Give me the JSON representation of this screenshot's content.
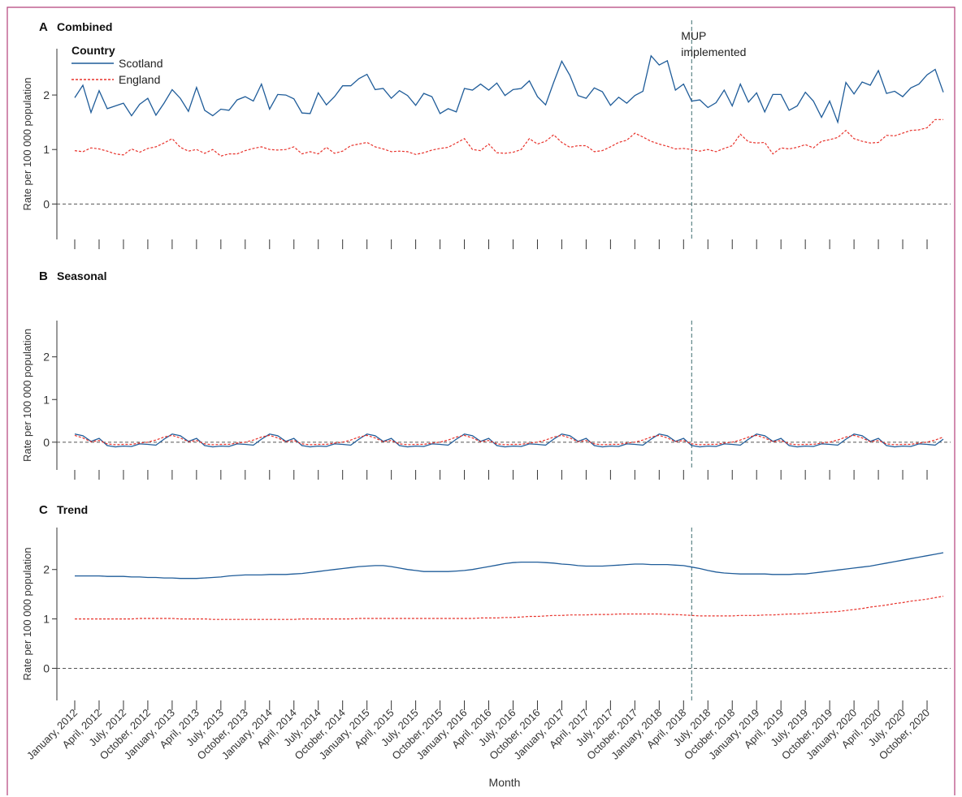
{
  "figure": {
    "frame_color": "#b5417a",
    "xlabel": "Month",
    "annotation": [
      "MUP",
      "implemented"
    ],
    "event_month": "2018-05",
    "x_ticks": [
      "January, 2012",
      "April, 2012",
      "July, 2012",
      "October, 2012",
      "January, 2013",
      "April, 2013",
      "July, 2013",
      "October, 2013",
      "January, 2014",
      "April, 2014",
      "July, 2014",
      "October, 2014",
      "January, 2015",
      "April, 2015",
      "July, 2015",
      "October, 2015",
      "January, 2016",
      "April, 2016",
      "July, 2016",
      "October, 2016",
      "January, 2017",
      "April, 2017",
      "July, 2017",
      "October, 2017",
      "January, 2018",
      "April, 2018",
      "July, 2018",
      "October, 2018",
      "January, 2019",
      "April, 2019",
      "July, 2019",
      "October, 2019",
      "January, 2020",
      "April, 2020",
      "July, 2020",
      "October, 2020"
    ],
    "legend": {
      "title": "Country",
      "placement": "top-left",
      "entries": [
        {
          "name": "Scotland",
          "color": "#1f5c99",
          "style": "solid"
        },
        {
          "name": "England",
          "color": "#e8322b",
          "style": "dashed"
        }
      ]
    }
  },
  "chart_data": [
    {
      "type": "line",
      "panel_letter": "A",
      "title": "Combined",
      "ylabel": "Rate per 100 000 population",
      "ylim": [
        -0.65,
        2.85
      ],
      "yticks": [
        0,
        1,
        2
      ],
      "x_start": "2012-01",
      "x_end": "2020-12",
      "series": [
        {
          "name": "Scotland",
          "color": "#1f5c99",
          "values": [
            1.95,
            2.18,
            1.68,
            2.08,
            1.75,
            1.8,
            1.85,
            1.62,
            1.83,
            1.94,
            1.63,
            1.85,
            2.1,
            1.94,
            1.7,
            2.14,
            1.72,
            1.62,
            1.74,
            1.72,
            1.91,
            1.97,
            1.89,
            2.2,
            1.74,
            2.01,
            2.0,
            1.93,
            1.67,
            1.66,
            2.04,
            1.82,
            1.97,
            2.17,
            2.17,
            2.3,
            2.38,
            2.1,
            2.12,
            1.94,
            2.08,
            1.99,
            1.81,
            2.03,
            1.97,
            1.66,
            1.75,
            1.69,
            2.12,
            2.09,
            2.2,
            2.09,
            2.22,
            1.99,
            2.1,
            2.12,
            2.26,
            1.97,
            1.82,
            2.23,
            2.62,
            2.36,
            1.99,
            1.94,
            2.13,
            2.06,
            1.81,
            1.96,
            1.85,
            1.99,
            2.07,
            2.72,
            2.55,
            2.63,
            2.09,
            2.2,
            1.89,
            1.91,
            1.77,
            1.86,
            2.09,
            1.8,
            2.2,
            1.87,
            2.04,
            1.69,
            2.01,
            2.01,
            1.72,
            1.8,
            2.05,
            1.89,
            1.59,
            1.89,
            1.5,
            2.23,
            2.02,
            2.24,
            2.18,
            2.45,
            2.03,
            2.07,
            1.97,
            2.13,
            2.2,
            2.37,
            2.47,
            2.05
          ]
        },
        {
          "name": "England",
          "color": "#e8322b",
          "values": [
            0.98,
            0.96,
            1.03,
            1.01,
            0.97,
            0.92,
            0.9,
            1.01,
            0.95,
            1.02,
            1.05,
            1.12,
            1.2,
            1.04,
            0.97,
            1.0,
            0.93,
            1.0,
            0.88,
            0.92,
            0.92,
            0.98,
            1.02,
            1.05,
            1.0,
            0.99,
            1.0,
            1.05,
            0.92,
            0.96,
            0.92,
            1.04,
            0.93,
            0.97,
            1.07,
            1.1,
            1.13,
            1.05,
            1.01,
            0.96,
            0.97,
            0.96,
            0.91,
            0.94,
            0.99,
            1.02,
            1.04,
            1.12,
            1.2,
            1.0,
            0.98,
            1.1,
            0.94,
            0.93,
            0.95,
            1.0,
            1.2,
            1.1,
            1.15,
            1.27,
            1.13,
            1.04,
            1.07,
            1.07,
            0.96,
            0.98,
            1.05,
            1.13,
            1.17,
            1.3,
            1.23,
            1.15,
            1.1,
            1.06,
            1.01,
            1.02,
            1.0,
            0.97,
            1.0,
            0.96,
            1.02,
            1.07,
            1.28,
            1.14,
            1.12,
            1.13,
            0.92,
            1.03,
            1.01,
            1.04,
            1.09,
            1.03,
            1.15,
            1.18,
            1.22,
            1.35,
            1.2,
            1.15,
            1.12,
            1.13,
            1.26,
            1.25,
            1.3,
            1.35,
            1.36,
            1.4,
            1.55,
            1.55
          ]
        }
      ]
    },
    {
      "type": "line",
      "panel_letter": "B",
      "title": "Seasonal",
      "ylabel": "Rate per 100 000 population",
      "ylim": [
        -0.65,
        2.85
      ],
      "yticks": [
        0,
        1,
        2
      ],
      "x_start": "2012-01",
      "x_end": "2020-12",
      "series": [
        {
          "name": "Scotland",
          "color": "#1f5c99",
          "values": [
            0.19,
            0.15,
            0.02,
            0.09,
            -0.08,
            -0.11,
            -0.09,
            -0.1,
            -0.04,
            -0.05,
            -0.07,
            0.07,
            0.19,
            0.15,
            0.02,
            0.09,
            -0.08,
            -0.11,
            -0.09,
            -0.1,
            -0.04,
            -0.05,
            -0.07,
            0.07,
            0.19,
            0.15,
            0.02,
            0.09,
            -0.08,
            -0.11,
            -0.09,
            -0.1,
            -0.04,
            -0.05,
            -0.07,
            0.07,
            0.19,
            0.15,
            0.02,
            0.09,
            -0.08,
            -0.11,
            -0.09,
            -0.1,
            -0.04,
            -0.05,
            -0.07,
            0.07,
            0.19,
            0.15,
            0.02,
            0.09,
            -0.08,
            -0.11,
            -0.09,
            -0.1,
            -0.04,
            -0.05,
            -0.07,
            0.07,
            0.19,
            0.15,
            0.02,
            0.09,
            -0.08,
            -0.11,
            -0.09,
            -0.1,
            -0.04,
            -0.05,
            -0.07,
            0.07,
            0.19,
            0.15,
            0.02,
            0.09,
            -0.08,
            -0.11,
            -0.09,
            -0.1,
            -0.04,
            -0.05,
            -0.07,
            0.07,
            0.19,
            0.15,
            0.02,
            0.09,
            -0.08,
            -0.11,
            -0.09,
            -0.1,
            -0.04,
            -0.05,
            -0.07,
            0.07,
            0.19,
            0.15,
            0.02,
            0.09,
            -0.08,
            -0.11,
            -0.09,
            -0.1,
            -0.04,
            -0.05,
            -0.07,
            0.07
          ]
        },
        {
          "name": "England",
          "color": "#e8322b",
          "values": [
            0.16,
            0.1,
            0.01,
            0.04,
            -0.04,
            -0.06,
            -0.05,
            -0.05,
            -0.02,
            0.0,
            0.05,
            0.12,
            0.16,
            0.1,
            0.01,
            0.04,
            -0.04,
            -0.06,
            -0.05,
            -0.05,
            -0.02,
            0.0,
            0.05,
            0.12,
            0.16,
            0.1,
            0.01,
            0.04,
            -0.04,
            -0.06,
            -0.05,
            -0.05,
            -0.02,
            0.0,
            0.05,
            0.12,
            0.16,
            0.1,
            0.01,
            0.04,
            -0.04,
            -0.06,
            -0.05,
            -0.05,
            -0.02,
            0.0,
            0.05,
            0.12,
            0.16,
            0.1,
            0.01,
            0.04,
            -0.04,
            -0.06,
            -0.05,
            -0.05,
            -0.02,
            0.0,
            0.05,
            0.12,
            0.16,
            0.1,
            0.01,
            0.04,
            -0.04,
            -0.06,
            -0.05,
            -0.05,
            -0.02,
            0.0,
            0.05,
            0.12,
            0.16,
            0.1,
            0.01,
            0.04,
            -0.04,
            -0.06,
            -0.05,
            -0.05,
            -0.02,
            0.0,
            0.05,
            0.12,
            0.16,
            0.1,
            0.01,
            0.04,
            -0.04,
            -0.06,
            -0.05,
            -0.05,
            -0.02,
            0.0,
            0.05,
            0.12,
            0.16,
            0.1,
            0.01,
            0.04,
            -0.04,
            -0.06,
            -0.05,
            -0.05,
            -0.02,
            0.0,
            0.05,
            0.12
          ]
        }
      ]
    },
    {
      "type": "line",
      "panel_letter": "C",
      "title": "Trend",
      "ylabel": "Rate per 100 000 population",
      "ylim": [
        -0.65,
        2.85
      ],
      "yticks": [
        0,
        1,
        2
      ],
      "x_start": "2012-01",
      "x_end": "2020-12",
      "series": [
        {
          "name": "Scotland",
          "color": "#1f5c99",
          "values": [
            1.87,
            1.87,
            1.87,
            1.87,
            1.86,
            1.86,
            1.86,
            1.85,
            1.85,
            1.84,
            1.84,
            1.83,
            1.83,
            1.82,
            1.82,
            1.82,
            1.83,
            1.84,
            1.85,
            1.87,
            1.88,
            1.89,
            1.89,
            1.89,
            1.9,
            1.9,
            1.9,
            1.91,
            1.92,
            1.94,
            1.96,
            1.98,
            2.0,
            2.02,
            2.04,
            2.06,
            2.07,
            2.08,
            2.08,
            2.06,
            2.03,
            2.0,
            1.98,
            1.96,
            1.96,
            1.96,
            1.96,
            1.97,
            1.98,
            2.0,
            2.03,
            2.06,
            2.09,
            2.12,
            2.14,
            2.15,
            2.15,
            2.15,
            2.14,
            2.13,
            2.11,
            2.1,
            2.08,
            2.07,
            2.07,
            2.07,
            2.08,
            2.09,
            2.1,
            2.11,
            2.11,
            2.1,
            2.1,
            2.1,
            2.09,
            2.08,
            2.05,
            2.02,
            1.98,
            1.95,
            1.93,
            1.92,
            1.91,
            1.91,
            1.91,
            1.91,
            1.9,
            1.9,
            1.9,
            1.91,
            1.91,
            1.93,
            1.95,
            1.97,
            1.99,
            2.01,
            2.03,
            2.05,
            2.07,
            2.1,
            2.13,
            2.16,
            2.19,
            2.22,
            2.25,
            2.28,
            2.31,
            2.34
          ]
        },
        {
          "name": "England",
          "color": "#e8322b",
          "values": [
            1.0,
            1.0,
            1.0,
            1.0,
            1.0,
            1.0,
            1.0,
            1.0,
            1.01,
            1.01,
            1.01,
            1.01,
            1.01,
            1.0,
            1.0,
            1.0,
            1.0,
            0.99,
            0.99,
            0.99,
            0.99,
            0.99,
            0.99,
            0.99,
            0.99,
            0.99,
            0.99,
            0.99,
            1.0,
            1.0,
            1.0,
            1.0,
            1.0,
            1.0,
            1.0,
            1.01,
            1.01,
            1.01,
            1.01,
            1.01,
            1.01,
            1.01,
            1.01,
            1.01,
            1.01,
            1.01,
            1.01,
            1.01,
            1.01,
            1.01,
            1.02,
            1.02,
            1.02,
            1.03,
            1.03,
            1.04,
            1.05,
            1.05,
            1.06,
            1.07,
            1.07,
            1.08,
            1.08,
            1.08,
            1.09,
            1.09,
            1.09,
            1.1,
            1.1,
            1.1,
            1.1,
            1.1,
            1.1,
            1.09,
            1.09,
            1.08,
            1.07,
            1.06,
            1.06,
            1.06,
            1.06,
            1.06,
            1.07,
            1.07,
            1.07,
            1.08,
            1.08,
            1.09,
            1.1,
            1.1,
            1.11,
            1.12,
            1.13,
            1.14,
            1.15,
            1.17,
            1.19,
            1.21,
            1.24,
            1.26,
            1.28,
            1.31,
            1.33,
            1.36,
            1.38,
            1.4,
            1.43,
            1.46
          ]
        }
      ]
    }
  ]
}
